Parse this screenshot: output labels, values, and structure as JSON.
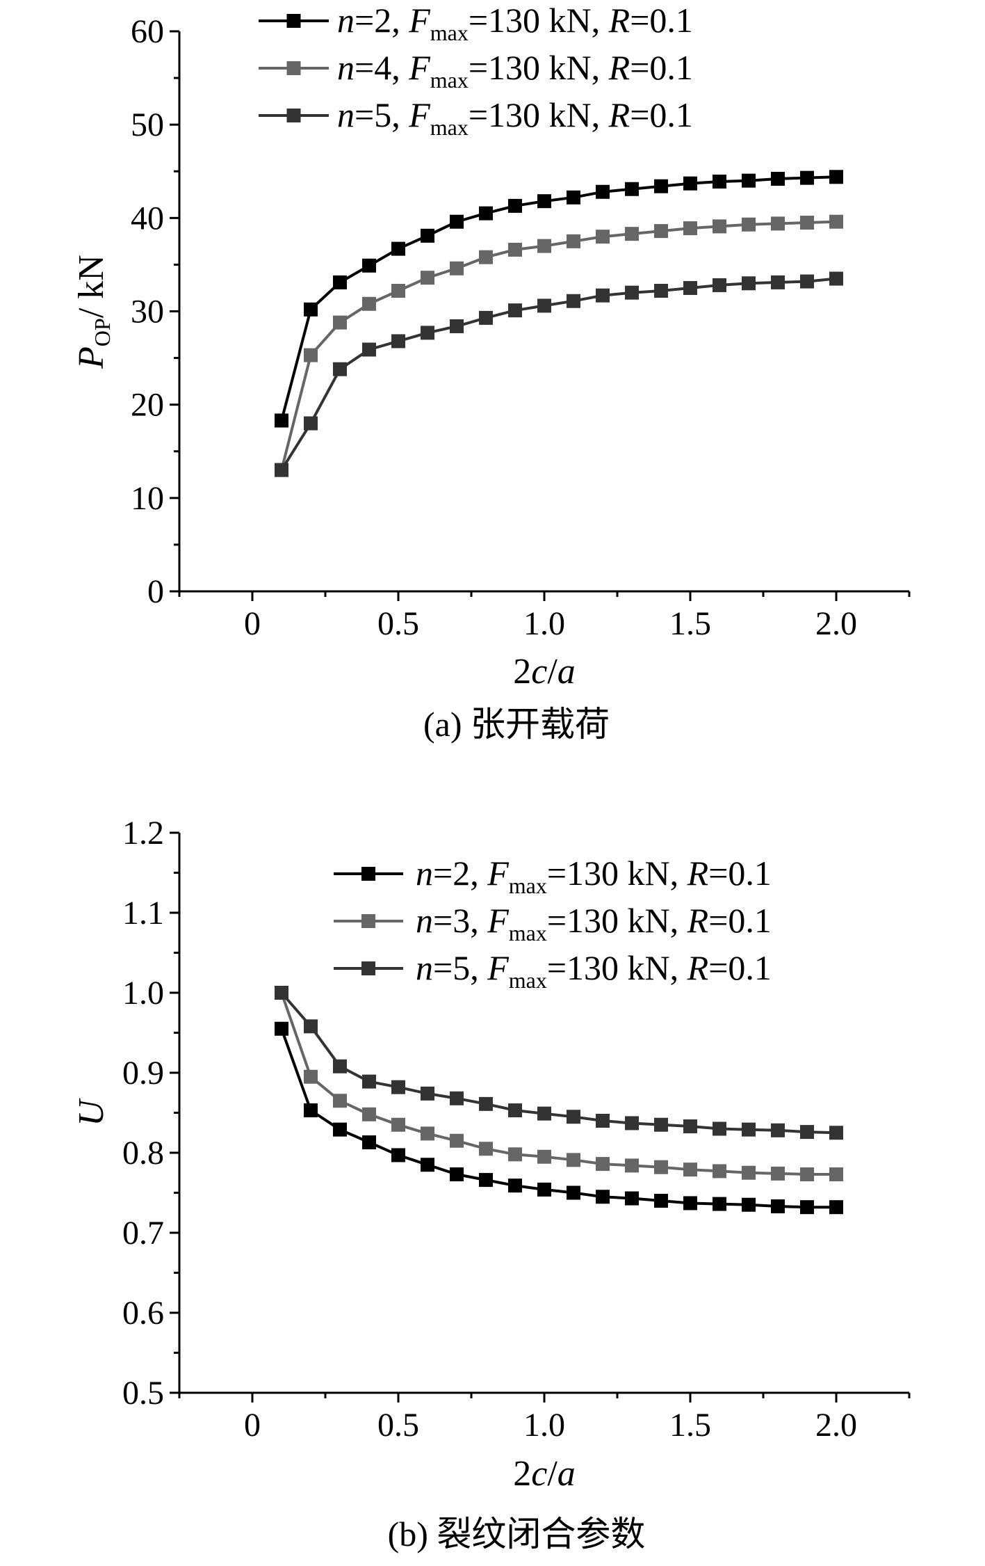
{
  "chart_data": [
    {
      "type": "line",
      "caption": "(a) 张开载荷",
      "xlabel_num": "2",
      "xlabel_var1": "c",
      "xlabel_sep": "/",
      "xlabel_var2": "a",
      "ylabel_var": "P",
      "ylabel_sub": "OP",
      "ylabel_unit": "/ kN",
      "xlim": [
        -0.25,
        2.25
      ],
      "ylim": [
        0,
        60
      ],
      "x_ticks": [
        0,
        0.5,
        1.0,
        1.5,
        2.0
      ],
      "x_tick_labels": [
        "0",
        "0.5",
        "1.0",
        "1.5",
        "2.0"
      ],
      "y_ticks": [
        0,
        10,
        20,
        30,
        40,
        50,
        60
      ],
      "y_tick_labels": [
        "0",
        "10",
        "20",
        "30",
        "40",
        "50",
        "60"
      ],
      "x": [
        0.1,
        0.2,
        0.3,
        0.4,
        0.5,
        0.6,
        0.7,
        0.8,
        0.9,
        1.0,
        1.1,
        1.2,
        1.3,
        1.4,
        1.5,
        1.6,
        1.7,
        1.8,
        1.9,
        2.0
      ],
      "series": [
        {
          "name": "n=2",
          "n_var": "n",
          "n_value": "=2, ",
          "f_var": "F",
          "f_sub": "max",
          "f_rest": "=130 kN, ",
          "r_var": "R",
          "r_rest": "=0.1",
          "color": "#000000",
          "values": [
            18.3,
            30.2,
            33.1,
            34.9,
            36.7,
            38.1,
            39.6,
            40.5,
            41.3,
            41.8,
            42.2,
            42.8,
            43.1,
            43.4,
            43.7,
            43.9,
            44.0,
            44.2,
            44.3,
            44.4
          ]
        },
        {
          "name": "n=4",
          "n_var": "n",
          "n_value": "=4, ",
          "f_var": "F",
          "f_sub": "max",
          "f_rest": "=130 kN, ",
          "r_var": "R",
          "r_rest": "=0.1",
          "color": "#666666",
          "values": [
            13.0,
            25.3,
            28.8,
            30.8,
            32.2,
            33.6,
            34.6,
            35.8,
            36.6,
            37.0,
            37.5,
            38.0,
            38.3,
            38.6,
            38.9,
            39.1,
            39.3,
            39.4,
            39.5,
            39.6
          ]
        },
        {
          "name": "n=5",
          "n_var": "n",
          "n_value": "=5, ",
          "f_var": "F",
          "f_sub": "max",
          "f_rest": "=130 kN, ",
          "r_var": "R",
          "r_rest": "=0.1",
          "color": "#333333",
          "values": [
            13.0,
            18.0,
            23.8,
            25.9,
            26.8,
            27.7,
            28.4,
            29.3,
            30.1,
            30.6,
            31.1,
            31.7,
            32.0,
            32.2,
            32.5,
            32.8,
            33.0,
            33.1,
            33.2,
            33.5
          ]
        }
      ]
    },
    {
      "type": "line",
      "caption": "(b) 裂纹闭合参数",
      "xlabel_num": "2",
      "xlabel_var1": "c",
      "xlabel_sep": "/",
      "xlabel_var2": "a",
      "ylabel_var": "U",
      "xlim": [
        -0.25,
        2.25
      ],
      "ylim": [
        0.5,
        1.2
      ],
      "x_ticks": [
        0,
        0.5,
        1.0,
        1.5,
        2.0
      ],
      "x_tick_labels": [
        "0",
        "0.5",
        "1.0",
        "1.5",
        "2.0"
      ],
      "y_ticks": [
        0.5,
        0.6,
        0.7,
        0.8,
        0.9,
        1.0,
        1.1,
        1.2
      ],
      "y_tick_labels": [
        "0.5",
        "0.6",
        "0.7",
        "0.8",
        "0.9",
        "1.0",
        "1.1",
        "1.2"
      ],
      "x": [
        0.1,
        0.2,
        0.3,
        0.4,
        0.5,
        0.6,
        0.7,
        0.8,
        0.9,
        1.0,
        1.1,
        1.2,
        1.3,
        1.4,
        1.5,
        1.6,
        1.7,
        1.8,
        1.9,
        2.0
      ],
      "series": [
        {
          "name": "n=2",
          "n_var": "n",
          "n_value": "=2, ",
          "f_var": "F",
          "f_sub": "max",
          "f_rest": "=130 kN, ",
          "r_var": "R",
          "r_rest": "=0.1",
          "color": "#000000",
          "values": [
            0.955,
            0.853,
            0.829,
            0.813,
            0.797,
            0.785,
            0.773,
            0.766,
            0.759,
            0.754,
            0.75,
            0.745,
            0.743,
            0.74,
            0.737,
            0.736,
            0.735,
            0.733,
            0.732,
            0.732
          ]
        },
        {
          "name": "n=3",
          "n_var": "n",
          "n_value": "=3, ",
          "f_var": "F",
          "f_sub": "max",
          "f_rest": "=130 kN, ",
          "r_var": "R",
          "r_rest": "=0.1",
          "color": "#666666",
          "values": [
            1.0,
            0.895,
            0.865,
            0.848,
            0.835,
            0.824,
            0.815,
            0.805,
            0.798,
            0.795,
            0.791,
            0.786,
            0.784,
            0.782,
            0.779,
            0.777,
            0.775,
            0.774,
            0.773,
            0.773
          ]
        },
        {
          "name": "n=5",
          "n_var": "n",
          "n_value": "=5, ",
          "f_var": "F",
          "f_sub": "max",
          "f_rest": "=130 kN, ",
          "r_var": "R",
          "r_rest": "=0.1",
          "color": "#333333",
          "values": [
            1.0,
            0.958,
            0.908,
            0.889,
            0.882,
            0.874,
            0.868,
            0.861,
            0.853,
            0.849,
            0.845,
            0.84,
            0.837,
            0.835,
            0.833,
            0.83,
            0.829,
            0.828,
            0.826,
            0.825
          ]
        }
      ]
    }
  ]
}
